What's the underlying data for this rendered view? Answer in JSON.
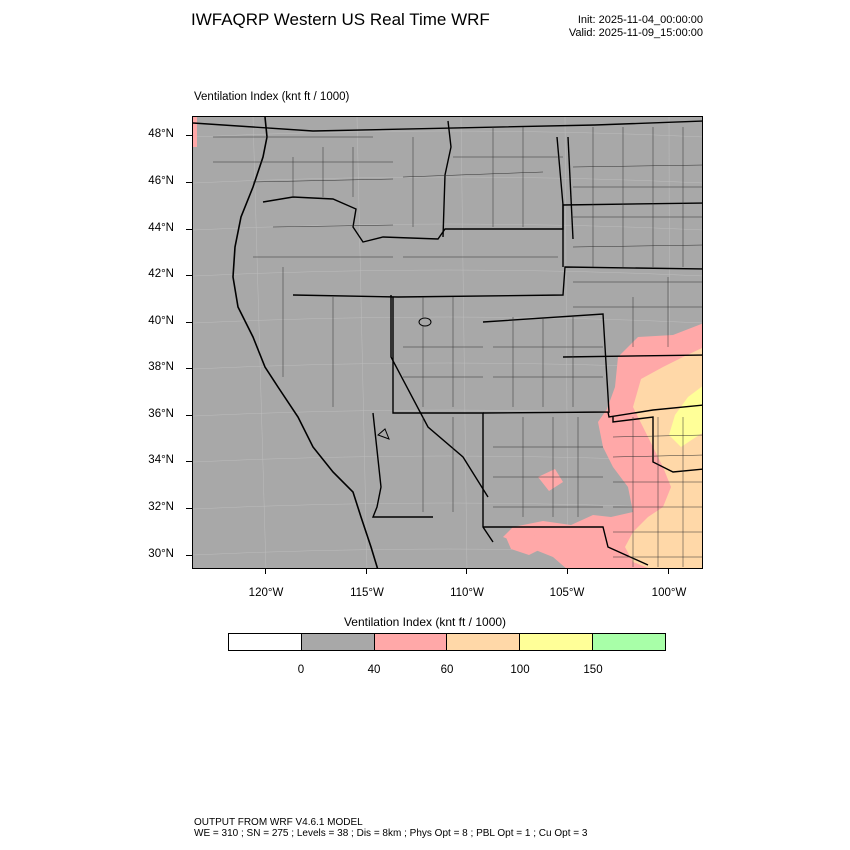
{
  "header": {
    "title": "IWFAQRP Western US Real Time WRF",
    "init": "Init: 2025-11-04_00:00:00",
    "valid": "Valid: 2025-11-09_15:00:00"
  },
  "map": {
    "field_label": "Ventilation Index   (knt ft / 1000)",
    "lat_labels": [
      "48°N",
      "46°N",
      "44°N",
      "42°N",
      "40°N",
      "38°N",
      "36°N",
      "34°N",
      "32°N",
      "30°N"
    ],
    "lon_labels": [
      "120°W",
      "115°W",
      "110°W",
      "105°W",
      "100°W"
    ],
    "background_color": "#a8a8a8"
  },
  "colorbar": {
    "title": "Ventilation Index  (knt ft / 1000)",
    "colors": [
      "#ffffff",
      "#a8a8a8",
      "#ffa8a8",
      "#ffd8a8",
      "#ffff98",
      "#a8ffa8"
    ],
    "tick_labels": [
      "0",
      "40",
      "60",
      "100",
      "150"
    ]
  },
  "footer": {
    "line1": "OUTPUT FROM WRF V4.6.1 MODEL",
    "line2": "WE = 310 ; SN = 275 ; Levels = 38 ; Dis = 8km ; Phys Opt = 8 ; PBL Opt = 1 ; Cu Opt = 3"
  }
}
